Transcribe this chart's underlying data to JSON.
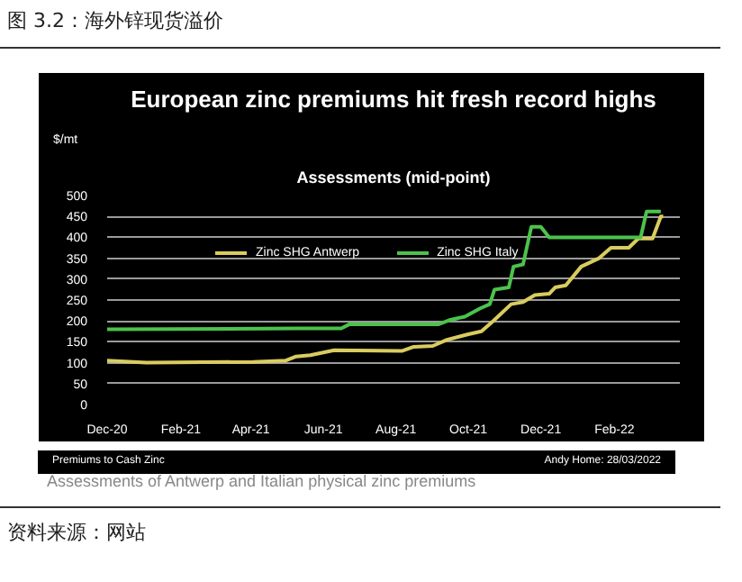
{
  "chart_data": {
    "type": "line",
    "title": "European zinc premiums hit fresh record highs",
    "subtitle": "Assessments (mid-point)",
    "ylabel": "$/mt",
    "annotations": [
      "图 3.2：海外锌现货溢价",
      "Premiums to Cash Zinc",
      "Andy Home: 28/03/2022",
      "Assessments of Antwerp and Italian physical zinc premiums",
      "资料来源：网站"
    ],
    "series": [
      {
        "name": "Zinc SHG Antwerp",
        "color": "#d9cc5e",
        "x": [
          "2020-12-01",
          "2021-01-03",
          "2021-04-03",
          "2021-04-30",
          "2021-05-09",
          "2021-05-21",
          "2021-06-10",
          "2021-08-06",
          "2021-08-16",
          "2021-09-01",
          "2021-09-13",
          "2021-10-01",
          "2021-10-12",
          "2021-10-22",
          "2021-11-06",
          "2021-11-16",
          "2021-11-26",
          "2021-12-08",
          "2021-12-13",
          "2021-12-22",
          "2022-01-04",
          "2022-01-19",
          "2022-01-29",
          "2022-02-13",
          "2022-02-21",
          "2022-03-05",
          "2022-03-12",
          "2022-03-14"
        ],
        "values": [
          105,
          100,
          102,
          105,
          115,
          118,
          130,
          128,
          138,
          140,
          155,
          168,
          175,
          200,
          240,
          245,
          262,
          265,
          280,
          285,
          330,
          350,
          375,
          375,
          397,
          397,
          450,
          450
        ]
      },
      {
        "name": "Zinc SHG Italy",
        "color": "#4cc24c",
        "x": [
          "2020-12-01",
          "2021-05-11",
          "2021-06-16",
          "2021-06-23",
          "2021-09-06",
          "2021-09-15",
          "2021-09-28",
          "2021-10-11",
          "2021-10-19",
          "2021-10-23",
          "2021-11-04",
          "2021-11-08",
          "2021-11-16",
          "2021-11-23",
          "2021-12-01",
          "2021-12-08",
          "2022-02-23",
          "2022-02-28",
          "2022-03-12"
        ],
        "values": [
          180,
          182,
          182,
          192,
          192,
          202,
          210,
          230,
          240,
          275,
          280,
          330,
          335,
          425,
          425,
          400,
          400,
          462,
          462
        ]
      }
    ],
    "xlim": [
      "2020-12-01",
      "2022-03-28"
    ],
    "xticks": [
      {
        "value": "2020-12-01",
        "label": "Dec-20"
      },
      {
        "value": "2021-02-01",
        "label": "Feb-21"
      },
      {
        "value": "2021-04-01",
        "label": "Apr-21"
      },
      {
        "value": "2021-06-01",
        "label": "Jun-21"
      },
      {
        "value": "2021-08-01",
        "label": "Aug-21"
      },
      {
        "value": "2021-10-01",
        "label": "Oct-21"
      },
      {
        "value": "2021-12-01",
        "label": "Dec-21"
      },
      {
        "value": "2022-02-01",
        "label": "Feb-22"
      }
    ],
    "ylim": [
      0,
      500
    ],
    "yticks": [
      0,
      50,
      100,
      150,
      200,
      250,
      300,
      350,
      400,
      450,
      500
    ],
    "grid": "y",
    "legend": "top",
    "marker": "none",
    "line_style": "solid"
  }
}
